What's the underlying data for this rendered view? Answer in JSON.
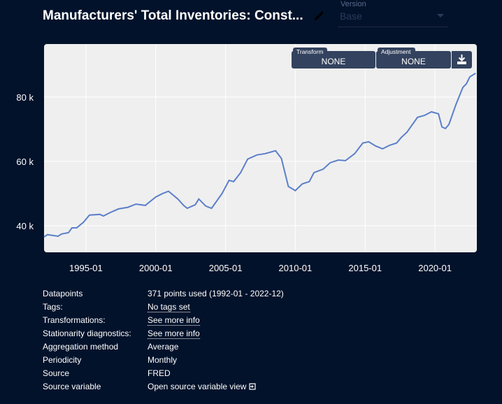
{
  "header": {
    "title": "Manufacturers' Total Inventories: Const...",
    "version_label": "Version",
    "version_value": "Base"
  },
  "controls": {
    "transform_label": "Transform",
    "transform_value": "NONE",
    "adjustment_label": "Adjustment",
    "adjustment_value": "NONE"
  },
  "colors": {
    "background": "#03122b",
    "plot_bg": "#efefef",
    "line": "#5b7fc9",
    "control_bg": "#33425e"
  },
  "chart_data": {
    "type": "line",
    "title": "",
    "xlabel": "",
    "ylabel": "",
    "xlim": [
      "1992-01",
      "2023-01"
    ],
    "ylim": [
      31.7,
      96.5
    ],
    "y_unit": "k",
    "grid": true,
    "x_ticks": [
      "1995-01",
      "2000-01",
      "2005-01",
      "2010-01",
      "2015-01",
      "2020-01"
    ],
    "y_ticks": [
      {
        "value": 40,
        "label": "40 k"
      },
      {
        "value": 60,
        "label": "60 k"
      },
      {
        "value": 80,
        "label": "80 k"
      }
    ],
    "series": [
      {
        "x": [
          "1992-01",
          "1992-04",
          "1993-01",
          "1993-04",
          "1993-10",
          "1994-01",
          "1994-05",
          "1994-11",
          "1995-04",
          "1996-01",
          "1996-04",
          "1996-10",
          "1997-05",
          "1998-01",
          "1998-08",
          "1999-04",
          "2000-01",
          "2000-07",
          "2000-12",
          "2001-08",
          "2002-01",
          "2002-04",
          "2002-11",
          "2003-02",
          "2003-08",
          "2004-01",
          "2004-10",
          "2005-04",
          "2005-08",
          "2006-02",
          "2006-08",
          "2007-04",
          "2007-11",
          "2008-08",
          "2009-01",
          "2009-07",
          "2010-01",
          "2010-07",
          "2011-01",
          "2011-05",
          "2012-01",
          "2012-07",
          "2013-02",
          "2013-08",
          "2014-04",
          "2014-11",
          "2015-04",
          "2015-10",
          "2016-04",
          "2016-10",
          "2017-04",
          "2017-08",
          "2018-01",
          "2018-10",
          "2019-04",
          "2019-10",
          "2020-04",
          "2020-07",
          "2020-10",
          "2021-01",
          "2021-07",
          "2022-01",
          "2022-04",
          "2022-07",
          "2022-12"
        ],
        "y": [
          36.5,
          37.2,
          36.7,
          37.4,
          37.8,
          39.3,
          39.3,
          41.1,
          43.3,
          43.5,
          43.0,
          44.1,
          45.2,
          45.7,
          46.7,
          46.3,
          48.9,
          50.0,
          50.7,
          48.3,
          46.3,
          45.4,
          46.5,
          48.3,
          46.1,
          45.4,
          50.0,
          54.1,
          53.7,
          56.5,
          60.7,
          62.0,
          62.4,
          63.3,
          60.9,
          52.2,
          50.9,
          53.0,
          53.7,
          56.5,
          57.6,
          59.6,
          60.4,
          60.2,
          62.4,
          65.7,
          66.1,
          64.8,
          63.9,
          65.0,
          65.7,
          67.4,
          69.1,
          73.7,
          74.3,
          75.4,
          74.8,
          70.7,
          70.2,
          71.5,
          77.6,
          83.0,
          84.1,
          86.3,
          87.4
        ]
      }
    ]
  },
  "info": [
    {
      "key": "Datapoints",
      "value": "371 points used (1992-01 - 2022-12)"
    },
    {
      "key": "Tags:",
      "value": "No tags set"
    },
    {
      "key": "Transformations:",
      "value": "See more info"
    },
    {
      "key": "Stationarity diagnostics:",
      "value": "See more info"
    },
    {
      "key": "Aggregation method",
      "value": "Average"
    },
    {
      "key": "Periodicity",
      "value": "Monthly"
    },
    {
      "key": "Source",
      "value": "FRED"
    },
    {
      "key": "Source variable",
      "value": "Open source variable view"
    }
  ]
}
